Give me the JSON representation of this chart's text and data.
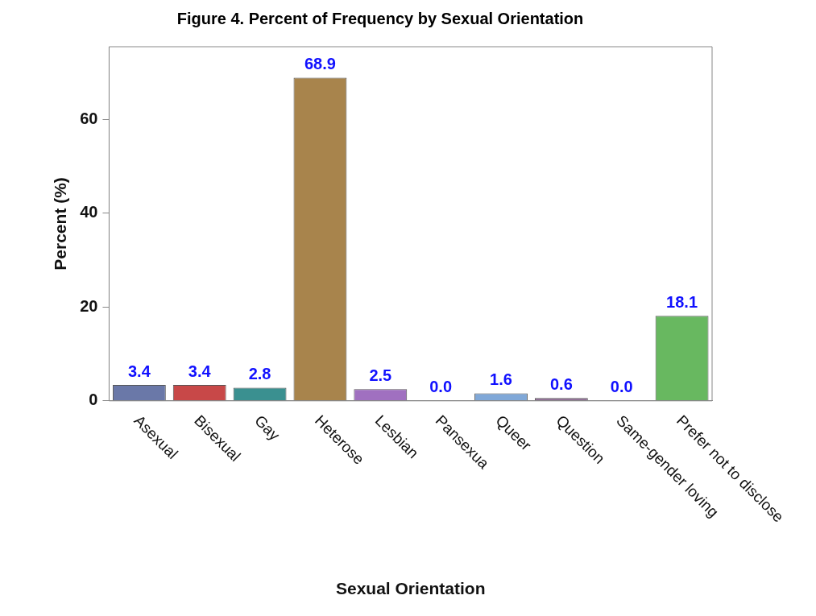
{
  "chart_data": {
    "type": "bar",
    "title": "Figure 4. Percent of Frequency by Sexual Orientation",
    "xlabel": "Sexual Orientation",
    "ylabel": "Percent (%)",
    "categories": [
      "Asexual",
      "Bisexual",
      "Gay",
      "Heterose",
      "Lesbian",
      "Pansexua",
      "Queer",
      "Question",
      "Same-gender loving",
      "Prefer not to disclose"
    ],
    "values": [
      3.4,
      3.4,
      2.8,
      68.9,
      2.5,
      0.0,
      1.6,
      0.6,
      0.0,
      18.1
    ],
    "value_labels": [
      "3.4",
      "3.4",
      "2.8",
      "68.9",
      "2.5",
      "0.0",
      "1.6",
      "0.6",
      "0.0",
      "18.1"
    ],
    "colors": [
      "#6a78a8",
      "#c84848",
      "#3a9090",
      "#a8844c",
      "#a070c0",
      "#d8c8a0",
      "#80a8d8",
      "#8a6890",
      "#e0e0a0",
      "#68b860"
    ],
    "ylim": [
      0,
      75.5
    ],
    "yticks": [
      0,
      20,
      40,
      60
    ],
    "grid": false,
    "legend": false
  }
}
